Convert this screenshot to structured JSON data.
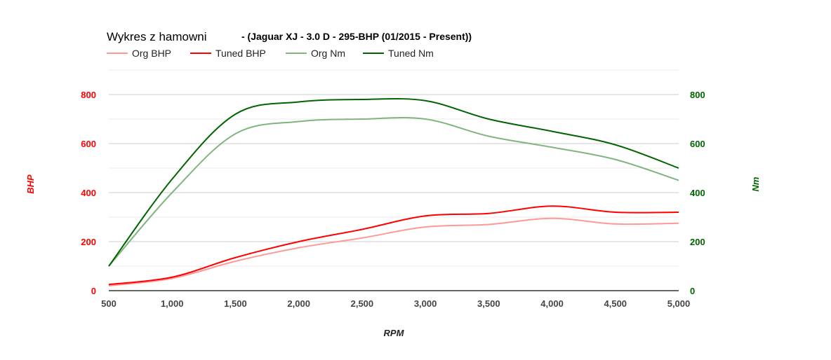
{
  "chart_data": {
    "type": "line",
    "title": "Wykres z hamowni",
    "subtitle": "- (Jaguar XJ - 3.0 D - 295-BHP (01/2015 - Present))",
    "xlabel": "RPM",
    "ylabel_left": "BHP",
    "ylabel_right": "Nm",
    "x": [
      500,
      1000,
      1500,
      2000,
      2500,
      3000,
      3500,
      4000,
      4500,
      5000
    ],
    "x_tick_labels": [
      "500",
      "1,000",
      "1,500",
      "2,000",
      "2,500",
      "3,000",
      "3,500",
      "4,000",
      "4,500",
      "5,000"
    ],
    "xlim": [
      500,
      5000
    ],
    "ylim": [
      0,
      900
    ],
    "y_tick_labels_left": [
      "0",
      "200",
      "400",
      "600",
      "800"
    ],
    "y_tick_labels_right": [
      "0",
      "200",
      "400",
      "600",
      "800"
    ],
    "y_tick_values": [
      0,
      200,
      400,
      600,
      800
    ],
    "grid": true,
    "legend_position": "top-left",
    "left_axis_color": "#ff0000",
    "right_axis_color": "#006400",
    "series": [
      {
        "name": "Org BHP",
        "color": "#ff9999",
        "axis": "left",
        "values": [
          20,
          50,
          120,
          175,
          215,
          260,
          270,
          295,
          272,
          275
        ]
      },
      {
        "name": "Tuned BHP",
        "color": "#ff0000",
        "axis": "left",
        "values": [
          25,
          55,
          135,
          200,
          250,
          305,
          315,
          345,
          320,
          320
        ]
      },
      {
        "name": "Org Nm",
        "color": "#7fb57f",
        "axis": "right",
        "values": [
          100,
          400,
          640,
          690,
          700,
          700,
          630,
          585,
          535,
          450
        ]
      },
      {
        "name": "Tuned Nm",
        "color": "#006400",
        "axis": "right",
        "values": [
          100,
          455,
          720,
          770,
          780,
          775,
          700,
          650,
          595,
          500
        ]
      }
    ]
  }
}
